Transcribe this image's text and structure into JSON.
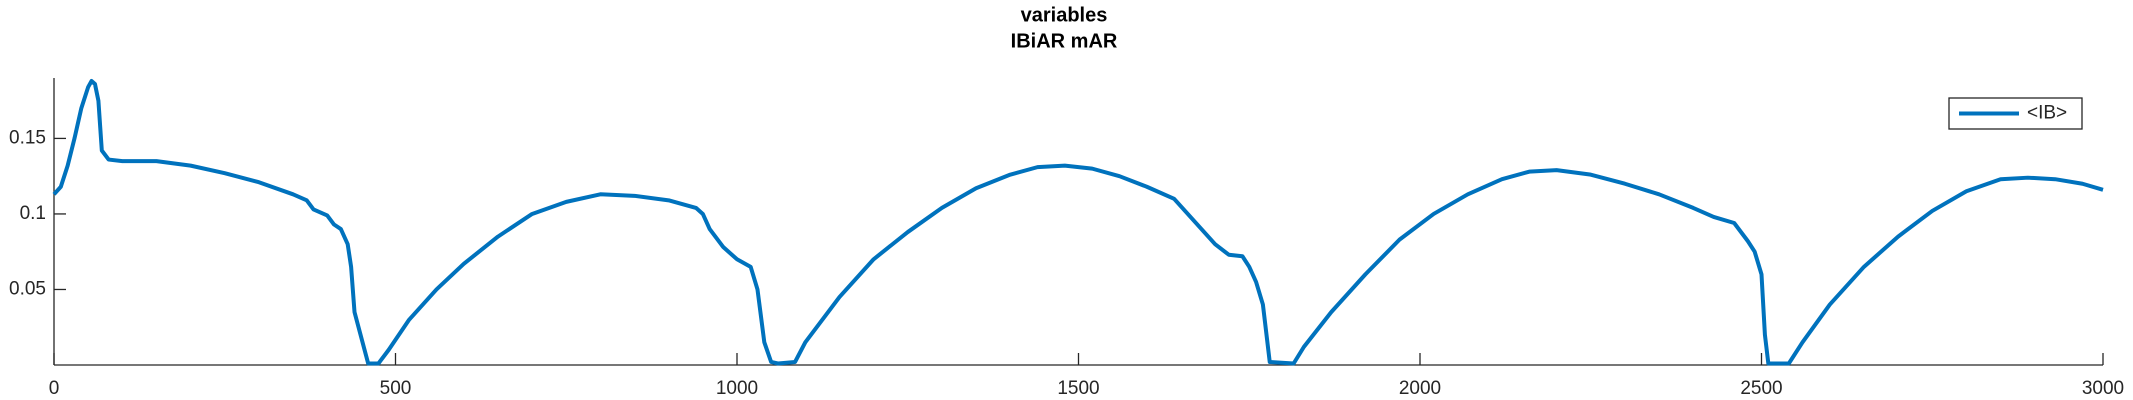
{
  "chart_data": {
    "type": "line",
    "title": "variables",
    "subtitle": "IBiAR mAR",
    "x": [
      0,
      10,
      20,
      30,
      40,
      50,
      55,
      60,
      65,
      70,
      80,
      100,
      150,
      200,
      250,
      300,
      350,
      370,
      380,
      400,
      410,
      420,
      430,
      435,
      440,
      460,
      475,
      490,
      520,
      560,
      600,
      650,
      700,
      750,
      800,
      850,
      900,
      940,
      950,
      960,
      980,
      1000,
      1020,
      1030,
      1040,
      1050,
      1060,
      1085,
      1100,
      1150,
      1200,
      1250,
      1300,
      1350,
      1400,
      1440,
      1480,
      1520,
      1560,
      1600,
      1640,
      1660,
      1680,
      1700,
      1720,
      1740,
      1750,
      1760,
      1770,
      1780,
      1815,
      1830,
      1870,
      1920,
      1970,
      2020,
      2070,
      2120,
      2160,
      2200,
      2250,
      2300,
      2350,
      2400,
      2430,
      2460,
      2480,
      2490,
      2500,
      2505,
      2510,
      2540,
      2560,
      2600,
      2650,
      2700,
      2750,
      2800,
      2850,
      2890,
      2930,
      2970,
      3000
    ],
    "series": [
      {
        "name": "<IB>",
        "color": "#0072bd",
        "values": [
          0.113,
          0.118,
          0.132,
          0.15,
          0.17,
          0.184,
          0.188,
          0.186,
          0.175,
          0.142,
          0.136,
          0.135,
          0.135,
          0.132,
          0.127,
          0.121,
          0.113,
          0.109,
          0.103,
          0.099,
          0.093,
          0.09,
          0.08,
          0.065,
          0.035,
          0.001,
          0.001,
          0.01,
          0.03,
          0.05,
          0.067,
          0.085,
          0.1,
          0.108,
          0.113,
          0.112,
          0.109,
          0.104,
          0.1,
          0.09,
          0.078,
          0.07,
          0.065,
          0.05,
          0.015,
          0.002,
          0.001,
          0.002,
          0.015,
          0.045,
          0.07,
          0.088,
          0.104,
          0.117,
          0.126,
          0.131,
          0.132,
          0.13,
          0.125,
          0.118,
          0.11,
          0.1,
          0.09,
          0.08,
          0.073,
          0.072,
          0.065,
          0.055,
          0.04,
          0.002,
          0.001,
          0.012,
          0.035,
          0.06,
          0.083,
          0.1,
          0.113,
          0.123,
          0.128,
          0.129,
          0.126,
          0.12,
          0.113,
          0.104,
          0.098,
          0.094,
          0.082,
          0.075,
          0.06,
          0.02,
          0.001,
          0.001,
          0.015,
          0.04,
          0.065,
          0.085,
          0.102,
          0.115,
          0.123,
          0.124,
          0.123,
          0.12,
          0.116
        ]
      }
    ],
    "xlim": [
      0,
      3000
    ],
    "xticks": [
      0,
      500,
      1000,
      1500,
      2000,
      2500,
      3000
    ],
    "ylim": [
      0,
      0.19
    ],
    "yticks": [
      0.05,
      0.1,
      0.15
    ],
    "legend": "upper right"
  }
}
